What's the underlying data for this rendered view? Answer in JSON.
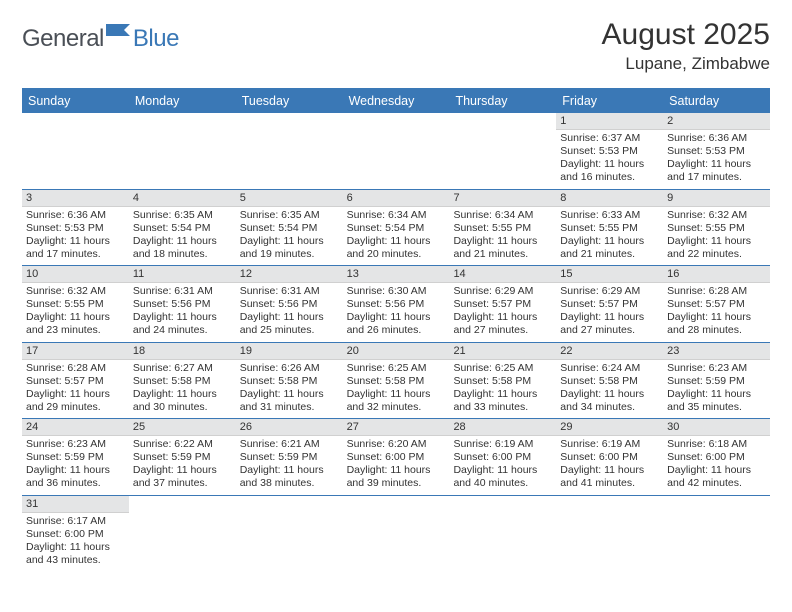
{
  "logo": {
    "general": "General",
    "blue": "Blue"
  },
  "title": "August 2025",
  "location": "Lupane, Zimbabwe",
  "colors": {
    "header_bg": "#3a78b6",
    "header_text": "#ffffff",
    "daynum_bg": "#e4e5e6",
    "text": "#333333",
    "logo_general": "#4a4f56",
    "logo_blue": "#3a78b6"
  },
  "weekdays": [
    "Sunday",
    "Monday",
    "Tuesday",
    "Wednesday",
    "Thursday",
    "Friday",
    "Saturday"
  ],
  "weeks": [
    [
      null,
      null,
      null,
      null,
      null,
      {
        "n": "1",
        "sr": "Sunrise: 6:37 AM",
        "ss": "Sunset: 5:53 PM",
        "d1": "Daylight: 11 hours",
        "d2": "and 16 minutes."
      },
      {
        "n": "2",
        "sr": "Sunrise: 6:36 AM",
        "ss": "Sunset: 5:53 PM",
        "d1": "Daylight: 11 hours",
        "d2": "and 17 minutes."
      }
    ],
    [
      {
        "n": "3",
        "sr": "Sunrise: 6:36 AM",
        "ss": "Sunset: 5:53 PM",
        "d1": "Daylight: 11 hours",
        "d2": "and 17 minutes."
      },
      {
        "n": "4",
        "sr": "Sunrise: 6:35 AM",
        "ss": "Sunset: 5:54 PM",
        "d1": "Daylight: 11 hours",
        "d2": "and 18 minutes."
      },
      {
        "n": "5",
        "sr": "Sunrise: 6:35 AM",
        "ss": "Sunset: 5:54 PM",
        "d1": "Daylight: 11 hours",
        "d2": "and 19 minutes."
      },
      {
        "n": "6",
        "sr": "Sunrise: 6:34 AM",
        "ss": "Sunset: 5:54 PM",
        "d1": "Daylight: 11 hours",
        "d2": "and 20 minutes."
      },
      {
        "n": "7",
        "sr": "Sunrise: 6:34 AM",
        "ss": "Sunset: 5:55 PM",
        "d1": "Daylight: 11 hours",
        "d2": "and 21 minutes."
      },
      {
        "n": "8",
        "sr": "Sunrise: 6:33 AM",
        "ss": "Sunset: 5:55 PM",
        "d1": "Daylight: 11 hours",
        "d2": "and 21 minutes."
      },
      {
        "n": "9",
        "sr": "Sunrise: 6:32 AM",
        "ss": "Sunset: 5:55 PM",
        "d1": "Daylight: 11 hours",
        "d2": "and 22 minutes."
      }
    ],
    [
      {
        "n": "10",
        "sr": "Sunrise: 6:32 AM",
        "ss": "Sunset: 5:55 PM",
        "d1": "Daylight: 11 hours",
        "d2": "and 23 minutes."
      },
      {
        "n": "11",
        "sr": "Sunrise: 6:31 AM",
        "ss": "Sunset: 5:56 PM",
        "d1": "Daylight: 11 hours",
        "d2": "and 24 minutes."
      },
      {
        "n": "12",
        "sr": "Sunrise: 6:31 AM",
        "ss": "Sunset: 5:56 PM",
        "d1": "Daylight: 11 hours",
        "d2": "and 25 minutes."
      },
      {
        "n": "13",
        "sr": "Sunrise: 6:30 AM",
        "ss": "Sunset: 5:56 PM",
        "d1": "Daylight: 11 hours",
        "d2": "and 26 minutes."
      },
      {
        "n": "14",
        "sr": "Sunrise: 6:29 AM",
        "ss": "Sunset: 5:57 PM",
        "d1": "Daylight: 11 hours",
        "d2": "and 27 minutes."
      },
      {
        "n": "15",
        "sr": "Sunrise: 6:29 AM",
        "ss": "Sunset: 5:57 PM",
        "d1": "Daylight: 11 hours",
        "d2": "and 27 minutes."
      },
      {
        "n": "16",
        "sr": "Sunrise: 6:28 AM",
        "ss": "Sunset: 5:57 PM",
        "d1": "Daylight: 11 hours",
        "d2": "and 28 minutes."
      }
    ],
    [
      {
        "n": "17",
        "sr": "Sunrise: 6:28 AM",
        "ss": "Sunset: 5:57 PM",
        "d1": "Daylight: 11 hours",
        "d2": "and 29 minutes."
      },
      {
        "n": "18",
        "sr": "Sunrise: 6:27 AM",
        "ss": "Sunset: 5:58 PM",
        "d1": "Daylight: 11 hours",
        "d2": "and 30 minutes."
      },
      {
        "n": "19",
        "sr": "Sunrise: 6:26 AM",
        "ss": "Sunset: 5:58 PM",
        "d1": "Daylight: 11 hours",
        "d2": "and 31 minutes."
      },
      {
        "n": "20",
        "sr": "Sunrise: 6:25 AM",
        "ss": "Sunset: 5:58 PM",
        "d1": "Daylight: 11 hours",
        "d2": "and 32 minutes."
      },
      {
        "n": "21",
        "sr": "Sunrise: 6:25 AM",
        "ss": "Sunset: 5:58 PM",
        "d1": "Daylight: 11 hours",
        "d2": "and 33 minutes."
      },
      {
        "n": "22",
        "sr": "Sunrise: 6:24 AM",
        "ss": "Sunset: 5:58 PM",
        "d1": "Daylight: 11 hours",
        "d2": "and 34 minutes."
      },
      {
        "n": "23",
        "sr": "Sunrise: 6:23 AM",
        "ss": "Sunset: 5:59 PM",
        "d1": "Daylight: 11 hours",
        "d2": "and 35 minutes."
      }
    ],
    [
      {
        "n": "24",
        "sr": "Sunrise: 6:23 AM",
        "ss": "Sunset: 5:59 PM",
        "d1": "Daylight: 11 hours",
        "d2": "and 36 minutes."
      },
      {
        "n": "25",
        "sr": "Sunrise: 6:22 AM",
        "ss": "Sunset: 5:59 PM",
        "d1": "Daylight: 11 hours",
        "d2": "and 37 minutes."
      },
      {
        "n": "26",
        "sr": "Sunrise: 6:21 AM",
        "ss": "Sunset: 5:59 PM",
        "d1": "Daylight: 11 hours",
        "d2": "and 38 minutes."
      },
      {
        "n": "27",
        "sr": "Sunrise: 6:20 AM",
        "ss": "Sunset: 6:00 PM",
        "d1": "Daylight: 11 hours",
        "d2": "and 39 minutes."
      },
      {
        "n": "28",
        "sr": "Sunrise: 6:19 AM",
        "ss": "Sunset: 6:00 PM",
        "d1": "Daylight: 11 hours",
        "d2": "and 40 minutes."
      },
      {
        "n": "29",
        "sr": "Sunrise: 6:19 AM",
        "ss": "Sunset: 6:00 PM",
        "d1": "Daylight: 11 hours",
        "d2": "and 41 minutes."
      },
      {
        "n": "30",
        "sr": "Sunrise: 6:18 AM",
        "ss": "Sunset: 6:00 PM",
        "d1": "Daylight: 11 hours",
        "d2": "and 42 minutes."
      }
    ],
    [
      {
        "n": "31",
        "sr": "Sunrise: 6:17 AM",
        "ss": "Sunset: 6:00 PM",
        "d1": "Daylight: 11 hours",
        "d2": "and 43 minutes."
      },
      null,
      null,
      null,
      null,
      null,
      null
    ]
  ]
}
